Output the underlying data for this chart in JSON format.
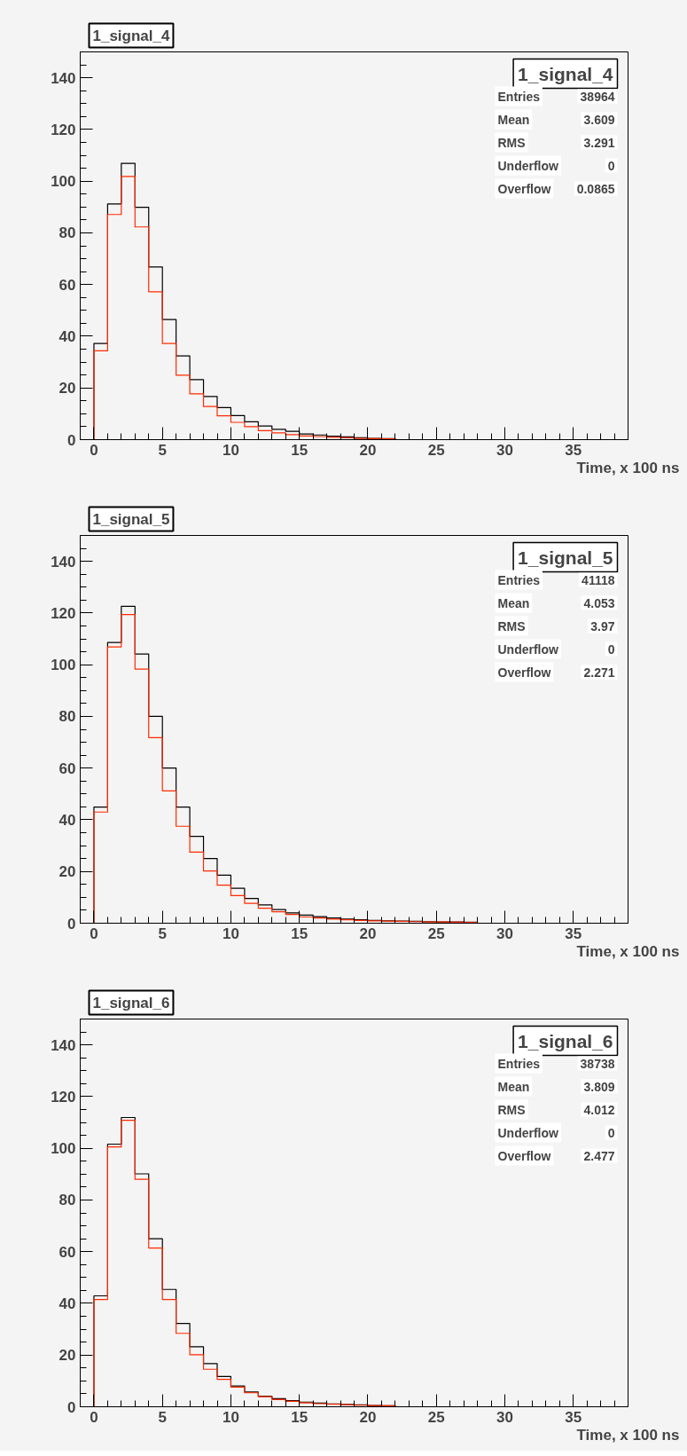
{
  "chart_data": [
    {
      "type": "histogram",
      "title": "1_signal_4",
      "xlabel": "Time, x 100 ns",
      "annotations": [
        "1_signal_4",
        "Entries",
        "38964",
        "Mean",
        "3.609",
        "RMS",
        "3.291",
        "Underflow",
        "0",
        "Overflow",
        "0.0865"
      ],
      "bins": [
        0,
        1,
        2,
        3,
        4,
        5,
        6,
        7,
        8,
        9,
        10,
        11,
        12,
        13,
        14,
        15,
        16,
        17,
        18,
        19,
        20,
        21,
        22
      ],
      "series": [
        {
          "color": "#000000",
          "values": [
            37.2,
            91.2,
            106.9,
            89.9,
            66.8,
            46.5,
            32.4,
            23.2,
            16.7,
            12.4,
            9.3,
            6.9,
            5.3,
            4.0,
            3.2,
            2.2,
            1.8,
            1.3,
            1.1,
            0.7,
            0.5,
            0.4
          ]
        },
        {
          "color": "#ff2a00",
          "values": [
            34.4,
            87.1,
            101.8,
            82.3,
            57.2,
            37.2,
            24.9,
            17.7,
            12.8,
            9.2,
            6.7,
            5.0,
            3.5,
            2.6,
            1.9,
            1.4,
            1.2,
            0.9,
            0.7,
            0.5,
            0.4,
            0.3
          ]
        }
      ],
      "xlim": [
        -1,
        39
      ],
      "ylim": [
        0,
        150
      ],
      "xticks": [
        0,
        5,
        10,
        15,
        20,
        25,
        30,
        35
      ],
      "yticks": [
        0,
        20,
        40,
        60,
        80,
        100,
        120,
        140
      ],
      "grid": false
    },
    {
      "type": "histogram",
      "title": "1_signal_5",
      "xlabel": "Time, x 100 ns",
      "annotations": [
        "1_signal_5",
        "Entries",
        "41118",
        "Mean",
        "4.053",
        "RMS",
        "3.97",
        "Underflow",
        "0",
        "Overflow",
        "2.271"
      ],
      "bins": [
        0,
        1,
        2,
        3,
        4,
        5,
        6,
        7,
        8,
        9,
        10,
        11,
        12,
        13,
        14,
        15,
        16,
        17,
        18,
        19,
        20,
        21,
        22,
        23,
        24,
        25,
        26,
        27,
        28
      ],
      "series": [
        {
          "color": "#000000",
          "values": [
            44.9,
            108.6,
            122.6,
            104.1,
            80.0,
            60.0,
            44.9,
            33.6,
            25.0,
            18.6,
            13.5,
            9.6,
            7.1,
            5.3,
            4.0,
            3.1,
            2.5,
            2.0,
            1.6,
            1.3,
            1.1,
            0.9,
            0.8,
            0.7,
            0.6,
            0.5,
            0.5,
            0.4
          ]
        },
        {
          "color": "#ff2a00",
          "values": [
            43.0,
            106.9,
            119.4,
            98.3,
            71.8,
            51.2,
            37.5,
            27.5,
            20.2,
            14.7,
            10.7,
            7.7,
            5.8,
            4.4,
            3.4,
            2.4,
            2.0,
            1.6,
            1.3,
            1.1,
            0.9,
            0.8,
            0.7,
            0.6,
            0.5,
            0.5,
            0.4,
            0.3
          ]
        }
      ],
      "xlim": [
        -1,
        39
      ],
      "ylim": [
        0,
        150
      ],
      "xticks": [
        0,
        5,
        10,
        15,
        20,
        25,
        30,
        35
      ],
      "yticks": [
        0,
        20,
        40,
        60,
        80,
        100,
        120,
        140
      ],
      "grid": false
    },
    {
      "type": "histogram",
      "title": "1_signal_6",
      "xlabel": "Time, x 100 ns",
      "annotations": [
        "1_signal_6",
        "Entries",
        "38738",
        "Mean",
        "3.809",
        "RMS",
        "4.012",
        "Underflow",
        "0",
        "Overflow",
        "2.477"
      ],
      "bins": [
        0,
        1,
        2,
        3,
        4,
        5,
        6,
        7,
        8,
        9,
        10,
        11,
        12,
        13,
        14,
        15,
        16,
        17,
        18,
        19,
        20,
        21,
        22
      ],
      "series": [
        {
          "color": "#000000",
          "values": [
            42.9,
            101.6,
            111.9,
            90.1,
            65.0,
            45.4,
            32.2,
            23.2,
            16.7,
            11.7,
            8.0,
            5.7,
            4.1,
            3.1,
            2.4,
            1.8,
            1.4,
            1.1,
            0.9,
            0.7,
            0.5,
            0.4
          ]
        },
        {
          "color": "#ff2a00",
          "values": [
            41.5,
            100.5,
            110.8,
            88.0,
            61.4,
            41.5,
            28.4,
            20.1,
            14.5,
            10.6,
            7.6,
            5.4,
            3.9,
            2.8,
            2.1,
            1.5,
            1.2,
            1.0,
            0.8,
            0.6,
            0.5,
            0.4
          ]
        }
      ],
      "xlim": [
        -1,
        39
      ],
      "ylim": [
        0,
        150
      ],
      "xticks": [
        0,
        5,
        10,
        15,
        20,
        25,
        30,
        35
      ],
      "yticks": [
        0,
        20,
        40,
        60,
        80,
        100,
        120,
        140
      ],
      "grid": false
    }
  ]
}
